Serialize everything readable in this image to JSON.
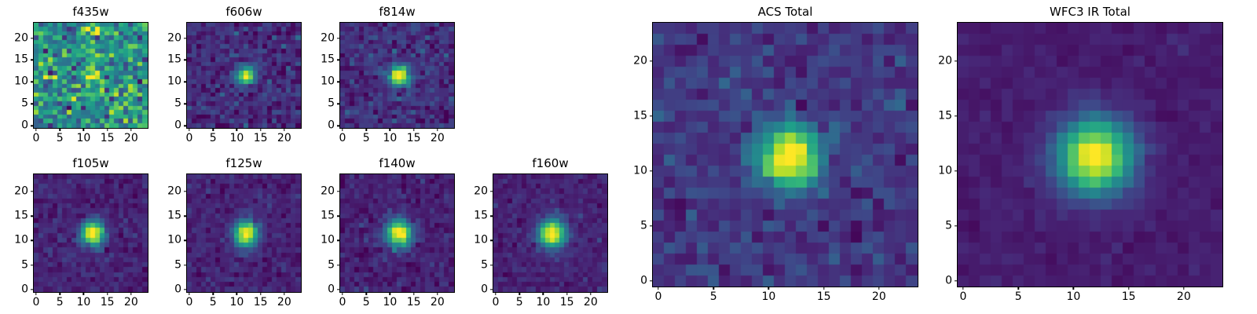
{
  "figure": {
    "background": "#ffffff",
    "text_color": "#000000",
    "description": "Grid of astronomical cutout images in multiple HST filters plus combined ACS and WFC3 IR totals"
  },
  "chart_data": {
    "type": "heatmap",
    "grid_size": 24,
    "axis": {
      "range": [
        0,
        23
      ],
      "ticks": [
        0,
        5,
        10,
        15,
        20
      ],
      "tick_labels": [
        "0",
        "5",
        "10",
        "15",
        "20"
      ]
    },
    "source": {
      "x": 12.0,
      "y": 11.3
    },
    "colormap": {
      "name": "viridis",
      "stops": [
        "#440154",
        "#472777",
        "#3e4989",
        "#31688e",
        "#26828e",
        "#1f9e89",
        "#35b779",
        "#6ece58",
        "#b5de2b",
        "#fde725"
      ]
    },
    "panels": [
      {
        "title": "f435w",
        "size": "small",
        "seed": 11,
        "background": 0.5,
        "noise": 0.17,
        "amplitude": 0.46,
        "sigma": 1.2
      },
      {
        "title": "f606w",
        "size": "small",
        "seed": 22,
        "background": 0.13,
        "noise": 0.07,
        "amplitude": 0.95,
        "sigma": 1.3
      },
      {
        "title": "f814w",
        "size": "small",
        "seed": 33,
        "background": 0.14,
        "noise": 0.07,
        "amplitude": 0.95,
        "sigma": 1.5
      },
      {
        "title": "f105w",
        "size": "small",
        "seed": 44,
        "background": 0.1,
        "noise": 0.045,
        "amplitude": 0.95,
        "sigma": 1.7
      },
      {
        "title": "f125w",
        "size": "small",
        "seed": 55,
        "background": 0.1,
        "noise": 0.045,
        "amplitude": 0.95,
        "sigma": 1.8
      },
      {
        "title": "f140w",
        "size": "small",
        "seed": 66,
        "background": 0.1,
        "noise": 0.045,
        "amplitude": 0.95,
        "sigma": 1.9
      },
      {
        "title": "f160w",
        "size": "small",
        "seed": 77,
        "background": 0.1,
        "noise": 0.04,
        "amplitude": 0.95,
        "sigma": 2.0
      },
      {
        "title": "ACS Total",
        "size": "large",
        "seed": 88,
        "background": 0.17,
        "noise": 0.06,
        "amplitude": 0.95,
        "sigma": 1.9
      },
      {
        "title": "WFC3 IR Total",
        "size": "large",
        "seed": 99,
        "background": 0.08,
        "noise": 0.022,
        "amplitude": 0.95,
        "sigma": 2.35
      }
    ]
  }
}
